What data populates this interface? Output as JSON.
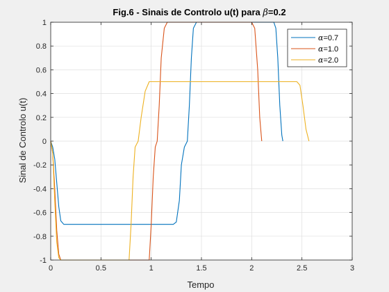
{
  "chart_data": {
    "type": "line",
    "title_prefix": "Fig.6 - Sinais de Controlo u(t) para ",
    "title_symbol": "β",
    "title_suffix": "=0.2",
    "xlabel": "Tempo",
    "ylabel": "Sinal de Controlo u(t)",
    "xlim": [
      0,
      3
    ],
    "ylim": [
      -1,
      1
    ],
    "xticks": [
      0,
      0.5,
      1,
      1.5,
      2,
      2.5,
      3
    ],
    "xtick_labels": [
      "0",
      "0.5",
      "1",
      "1.5",
      "2",
      "2.5",
      "3"
    ],
    "yticks": [
      -1,
      -0.8,
      -0.6,
      -0.4,
      -0.2,
      0,
      0.2,
      0.4,
      0.6,
      0.8,
      1
    ],
    "ytick_labels": [
      "-1",
      "-0.8",
      "-0.6",
      "-0.4",
      "-0.2",
      "0",
      "0.2",
      "0.4",
      "0.6",
      "0.8",
      "1"
    ],
    "grid": true,
    "legend_position": "top-right",
    "series": [
      {
        "name": "α=0.7",
        "legend_symbol": "α",
        "legend_value": "=0.7",
        "color": "#0072BD",
        "points": [
          [
            0,
            0
          ],
          [
            0.02,
            -0.05
          ],
          [
            0.04,
            -0.15
          ],
          [
            0.06,
            -0.35
          ],
          [
            0.08,
            -0.55
          ],
          [
            0.1,
            -0.67
          ],
          [
            0.13,
            -0.7
          ],
          [
            1.22,
            -0.7
          ],
          [
            1.25,
            -0.68
          ],
          [
            1.28,
            -0.5
          ],
          [
            1.3,
            -0.2
          ],
          [
            1.33,
            -0.05
          ],
          [
            1.36,
            0
          ],
          [
            1.38,
            0.3
          ],
          [
            1.4,
            0.7
          ],
          [
            1.42,
            0.95
          ],
          [
            1.45,
            1
          ],
          [
            2.22,
            1
          ],
          [
            2.24,
            0.95
          ],
          [
            2.26,
            0.7
          ],
          [
            2.28,
            0.3
          ],
          [
            2.3,
            0.05
          ],
          [
            2.31,
            0
          ]
        ]
      },
      {
        "name": "α=1.0",
        "legend_symbol": "α",
        "legend_value": "=1.0",
        "color": "#D95319",
        "points": [
          [
            0,
            0
          ],
          [
            0.02,
            -0.1
          ],
          [
            0.04,
            -0.4
          ],
          [
            0.06,
            -0.75
          ],
          [
            0.08,
            -0.95
          ],
          [
            0.1,
            -1
          ],
          [
            0.98,
            -1
          ],
          [
            1.0,
            -0.7
          ],
          [
            1.02,
            -0.3
          ],
          [
            1.04,
            -0.05
          ],
          [
            1.06,
            0
          ],
          [
            1.08,
            0.3
          ],
          [
            1.1,
            0.7
          ],
          [
            1.13,
            0.95
          ],
          [
            1.16,
            1
          ],
          [
            2.0,
            1
          ],
          [
            2.03,
            0.95
          ],
          [
            2.06,
            0.6
          ],
          [
            2.08,
            0.2
          ],
          [
            2.1,
            0
          ]
        ]
      },
      {
        "name": "α=2.0",
        "legend_symbol": "α",
        "legend_value": "=2.0",
        "color": "#EDB120",
        "points": [
          [
            0,
            0
          ],
          [
            0.02,
            -0.1
          ],
          [
            0.04,
            -0.5
          ],
          [
            0.06,
            -0.85
          ],
          [
            0.08,
            -0.98
          ],
          [
            0.1,
            -1
          ],
          [
            0.78,
            -1
          ],
          [
            0.8,
            -0.7
          ],
          [
            0.82,
            -0.3
          ],
          [
            0.84,
            -0.05
          ],
          [
            0.87,
            0
          ],
          [
            0.9,
            0.2
          ],
          [
            0.94,
            0.42
          ],
          [
            0.98,
            0.5
          ],
          [
            2.45,
            0.5
          ],
          [
            2.48,
            0.47
          ],
          [
            2.51,
            0.3
          ],
          [
            2.54,
            0.1
          ],
          [
            2.57,
            0
          ]
        ]
      }
    ]
  }
}
